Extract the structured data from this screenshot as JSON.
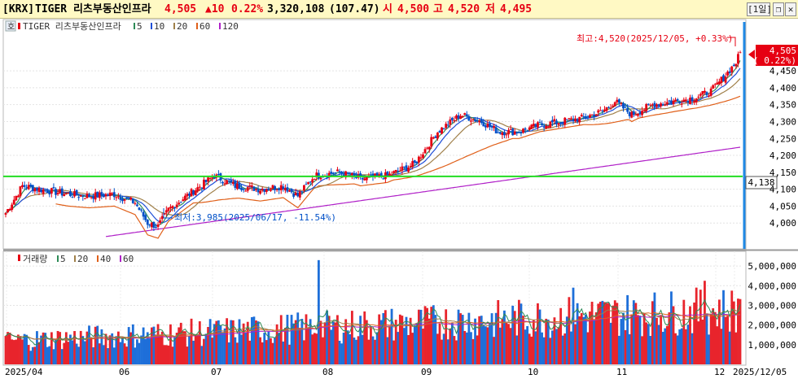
{
  "header": {
    "market_tag": "[KRX]",
    "name": "TIGER 리츠부동산인프라",
    "price": "4,505",
    "change": "▲10",
    "change_pct": "0.22%",
    "volume": "3,320,108",
    "volume_ratio": "(107.47)",
    "open_label": "시",
    "open": "4,500",
    "high_label": "고",
    "high": "4,520",
    "low_label": "저",
    "low": "4,495",
    "period_button": "[1일]",
    "colors": {
      "up": "#e60012",
      "down": "#0050c8",
      "neutral": "#000000"
    }
  },
  "price_panel": {
    "legend_name": "TIGER 리츠부동산인프라",
    "ma_legend": [
      {
        "label": "5",
        "color": "#2e8b57"
      },
      {
        "label": "10",
        "color": "#1e4fd8"
      },
      {
        "label": "20",
        "color": "#a0804a"
      },
      {
        "label": "60",
        "color": "#e0601a"
      },
      {
        "label": "120",
        "color": "#b020c8"
      }
    ],
    "hoga_label": "호",
    "max_annotation": "최고:4,520(2025/12/05, +0.33%)",
    "min_annotation": "최저:3,985(2025/06/17, -11.54%)",
    "price_tag": "4,505",
    "price_tag_pct": "( 0.22%)",
    "hline_tag": "4,138",
    "hline_color": "#22dd22",
    "y_ticks": [
      "4,450",
      "4,400",
      "4,350",
      "4,300",
      "4,250",
      "4,200",
      "4,150",
      "4,100",
      "4,050",
      "4,000"
    ]
  },
  "volume_panel": {
    "title": "거래량",
    "ma_legend": [
      {
        "label": "5",
        "color": "#2e8b57"
      },
      {
        "label": "20",
        "color": "#a0804a"
      },
      {
        "label": "40",
        "color": "#e0601a"
      },
      {
        "label": "60",
        "color": "#b020c8"
      }
    ],
    "y_ticks": [
      "5,000,000",
      "4,000,000",
      "3,000,000",
      "2,000,000",
      "1,000,000"
    ]
  },
  "x_axis": {
    "labels": [
      "2025/04",
      "06",
      "07",
      "08",
      "09",
      "10",
      "11",
      "12",
      "2025/12/05"
    ]
  },
  "chart_data": {
    "type": "candlestick",
    "y_price_range": [
      3950,
      4520
    ],
    "y_volume_range": [
      0,
      5500000
    ],
    "horizontal_line": 4138,
    "last_close": 4505,
    "grid": true,
    "note_source": "approximate values read from axes"
  }
}
